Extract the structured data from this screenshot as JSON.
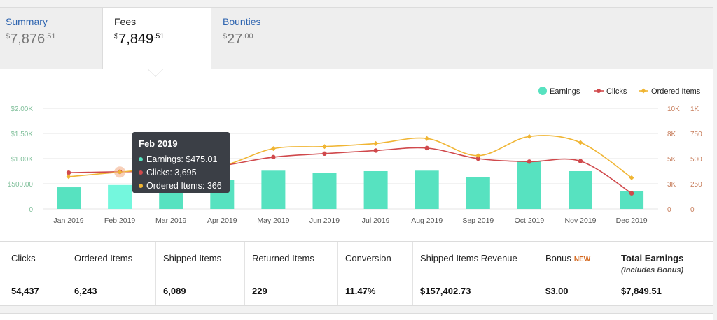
{
  "tabs": [
    {
      "label": "Summary",
      "currency": "$",
      "whole": "7,876",
      "cents": ".51"
    },
    {
      "label": "Fees",
      "currency": "$",
      "whole": "7,849",
      "cents": ".51"
    },
    {
      "label": "Bounties",
      "currency": "$",
      "whole": "27",
      "cents": ".00"
    }
  ],
  "tooltip": {
    "title": "Feb 2019",
    "earnings": "Earnings: $475.01",
    "clicks": "Clicks: 3,695",
    "ordered": "Ordered Items: 366"
  },
  "colors": {
    "earnings": "#57e2c0",
    "earnings_highlight": "#74f7dd",
    "clicks": "#d0494c",
    "ordered": "#f0b533"
  },
  "chart_data": {
    "type": "bar+line",
    "categories": [
      "Jan 2019",
      "Feb 2019",
      "Mar 2019",
      "Apr 2019",
      "May 2019",
      "Jun 2019",
      "Jul 2019",
      "Aug 2019",
      "Sep 2019",
      "Oct 2019",
      "Nov 2019",
      "Dec 2019"
    ],
    "legend": {
      "placement": "top-right",
      "entries": [
        "Earnings",
        "Clicks",
        "Ordered Items"
      ]
    },
    "y_left": {
      "ticks": [
        "0",
        "$500.00",
        "$1.00K",
        "$1.50K",
        "$2.00K"
      ],
      "range": [
        0,
        2000
      ]
    },
    "y_clicks": {
      "ticks": [
        "0",
        "3K",
        "5K",
        "8K",
        "10K"
      ],
      "range": [
        0,
        10000
      ]
    },
    "y_ordered": {
      "ticks": [
        "0",
        "250",
        "500",
        "750",
        "1K"
      ],
      "range": [
        0,
        1000
      ]
    },
    "series": [
      {
        "name": "Earnings",
        "type": "bar",
        "values": [
          430,
          475,
          520,
          570,
          760,
          720,
          750,
          760,
          630,
          940,
          750,
          360
        ]
      },
      {
        "name": "Clicks",
        "type": "line",
        "values": [
          3600,
          3695,
          3800,
          4300,
          5150,
          5500,
          5800,
          6050,
          5000,
          4700,
          4750,
          1550
        ]
      },
      {
        "name": "Ordered Items",
        "type": "line",
        "values": [
          320,
          366,
          410,
          430,
          600,
          620,
          650,
          700,
          530,
          720,
          660,
          310
        ]
      }
    ],
    "highlight_index": 1,
    "grid": true
  },
  "stats": [
    {
      "label": "Clicks",
      "value": "54,437"
    },
    {
      "label": "Ordered Items",
      "value": "6,243"
    },
    {
      "label": "Shipped Items",
      "value": "6,089"
    },
    {
      "label": "Returned Items",
      "value": "229"
    },
    {
      "label": "Conversion",
      "value": "11.47%"
    },
    {
      "label": "Shipped Items Revenue",
      "value": "$157,402.73"
    },
    {
      "label": "Bonus",
      "badge": "NEW",
      "value": "$3.00"
    },
    {
      "label": "Total Earnings",
      "sub": "(Includes Bonus)",
      "value": "$7,849.51"
    }
  ]
}
